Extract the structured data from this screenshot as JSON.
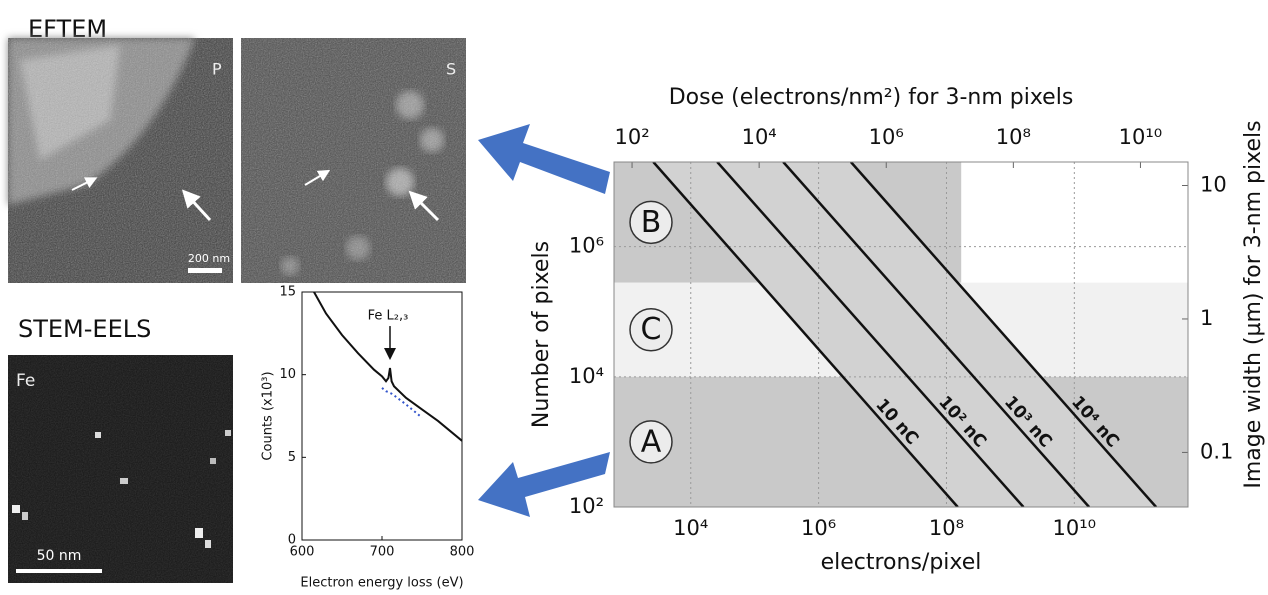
{
  "panels": {
    "eftem_title": "EFTEM",
    "stem_title": "STEM-EELS",
    "images": [
      {
        "label": "P",
        "scale_bar": "200 nm"
      },
      {
        "label": "S"
      },
      {
        "label": "Fe",
        "scale_bar": "50 nm"
      }
    ]
  },
  "chart_data": [
    {
      "type": "line",
      "xlabel": "Electron energy loss (eV)",
      "ylabel": "Counts (x10³)",
      "annotation": "Fe L₂,₃",
      "x": [
        615,
        630,
        650,
        670,
        690,
        700,
        705,
        708,
        710,
        712,
        715,
        730,
        750,
        770,
        800
      ],
      "series": [
        {
          "color": "#111111",
          "values": [
            15,
            13.7,
            12.4,
            11.3,
            10.3,
            9.9,
            9.6,
            9.8,
            10.4,
            9.6,
            9.3,
            8.6,
            7.9,
            7.2,
            6
          ]
        },
        {
          "color": "#3355cc",
          "dashed": true,
          "values": [
            null,
            null,
            null,
            null,
            null,
            9.2,
            9.0,
            8.95,
            8.9,
            8.85,
            8.75,
            8.2,
            7.4,
            null,
            null
          ]
        }
      ],
      "xlim": [
        600,
        800
      ],
      "xticks": [
        600,
        700,
        800
      ],
      "ylim": [
        0,
        15
      ],
      "yticks": [
        0,
        5,
        10,
        15
      ]
    },
    {
      "type": "line",
      "log": true,
      "grid": true,
      "line_labels": true,
      "xlabel": "electrons/pixel",
      "ylabel": "Number of pixels",
      "x2label": "Dose (electrons/nm²) for 3-nm pixels",
      "y2label": "Image width (µm) for 3-nm pixels",
      "xlim": [
        630,
        600000000000.0
      ],
      "xticks": [
        {
          "value": 10000,
          "label": "10⁴"
        },
        {
          "value": 1000000,
          "label": "10⁶"
        },
        {
          "value": 100000000,
          "label": "10⁸"
        },
        {
          "value": 10000000000,
          "label": "10¹⁰"
        }
      ],
      "ylim": [
        100,
        20000000.0
      ],
      "yticks": [
        {
          "value": 100,
          "label": "10²"
        },
        {
          "value": 10000,
          "label": "10⁴"
        },
        {
          "value": 1000000,
          "label": "10⁶"
        }
      ],
      "x2lim": [
        52,
        56000000000.0
      ],
      "x2ticks": [
        {
          "value": 100,
          "label": "10²"
        },
        {
          "value": 10000,
          "label": "10⁴"
        },
        {
          "value": 1000000,
          "label": "10⁶"
        },
        {
          "value": 100000000,
          "label": "10⁸"
        },
        {
          "value": 10000000000,
          "label": "10¹⁰"
        }
      ],
      "y2lim": [
        0.039,
        15
      ],
      "y2ticks": [
        0.1,
        1,
        10
      ],
      "regions": [
        {
          "label": "B",
          "xlim": [
            630,
            170000000.0
          ],
          "ylim": [
            280000,
            20000000.0
          ],
          "color": "#c9c9c9"
        },
        {
          "label": "C",
          "xlim": [
            630,
            600000000000.0
          ],
          "ylim": [
            10000,
            280000
          ],
          "color": "#f1f1f1"
        },
        {
          "label": "A",
          "xlim": [
            630,
            600000000000.0
          ],
          "ylim": [
            100,
            10000
          ],
          "color": "#c9c9c9"
        }
      ],
      "fill_between": [
        0,
        3
      ],
      "fill_color": "#d2d2d2",
      "series": [
        {
          "name": "10 nC",
          "color": "#111111",
          "x": [
            2600,
            150000000.0
          ],
          "values": [
            20000000.0,
            100
          ]
        },
        {
          "name": "10² nC",
          "color": "#111111",
          "x": [
            26000,
            1600000000.0
          ],
          "values": [
            20000000.0,
            100
          ]
        },
        {
          "name": "10³ nC",
          "color": "#111111",
          "x": [
            280000,
            17000000000.0
          ],
          "values": [
            20000000.0,
            100
          ]
        },
        {
          "name": "10⁴ nC",
          "color": "#111111",
          "x": [
            3200000,
            190000000000.0
          ],
          "values": [
            20000000.0,
            100
          ]
        }
      ]
    }
  ]
}
